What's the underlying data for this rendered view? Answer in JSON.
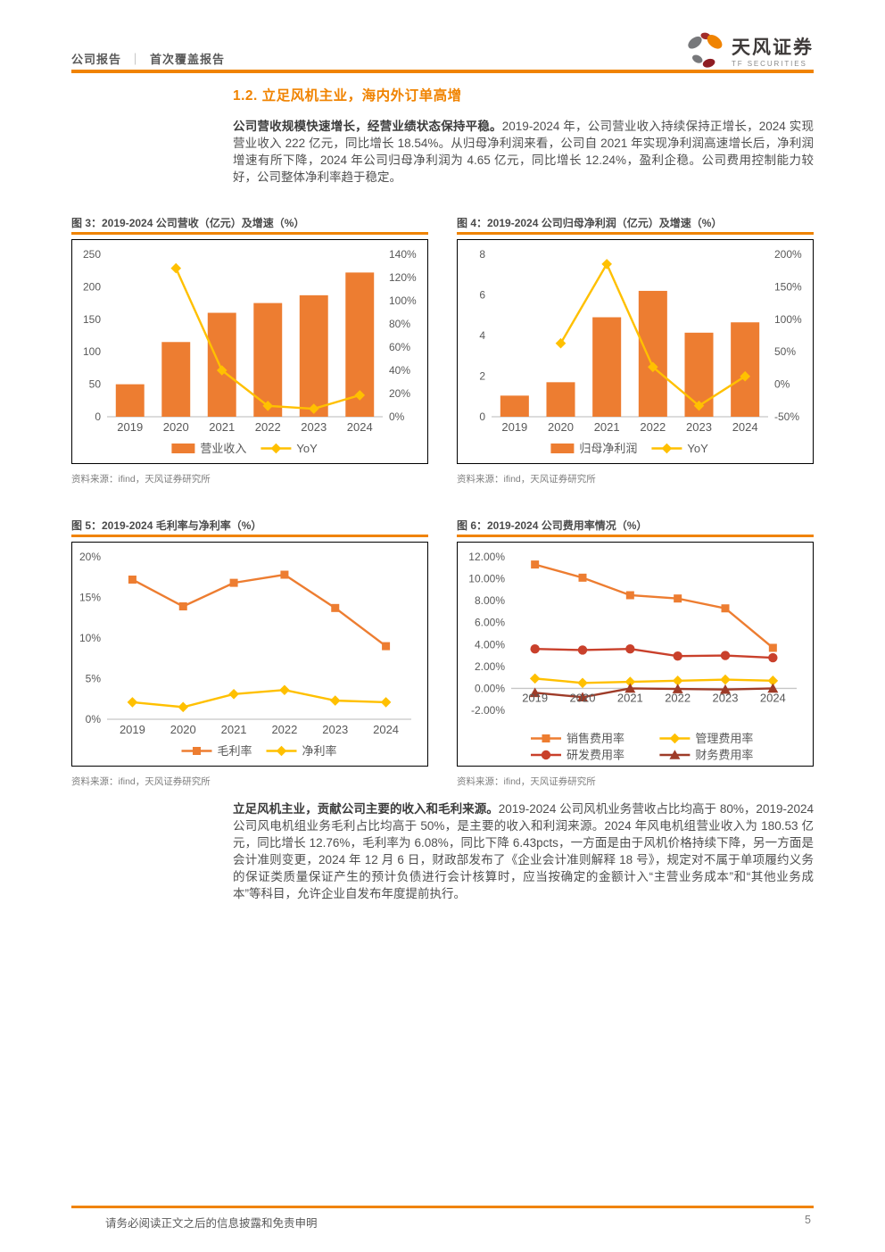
{
  "header": {
    "left_label_1": "公司报告",
    "separator": "｜",
    "left_label_2": "首次覆盖报告",
    "brand_cn": "天风证券",
    "brand_en": "TF SECURITIES"
  },
  "section": {
    "heading": "1.2. 立足风机主业，海内外订单高增"
  },
  "para1": {
    "bold": "公司营收规模快速增长，经营业绩状态保持平稳。",
    "rest": "2019-2024 年，公司营业收入持续保持正增长，2024 实现营业收入 222 亿元，同比增长 18.54%。从归母净利润来看，公司自 2021 年实现净利润高速增长后，净利润增速有所下降，2024 年公司归母净利润为 4.65 亿元，同比增长 12.24%，盈利企稳。公司费用控制能力较好，公司整体净利率趋于稳定。"
  },
  "para2": {
    "bold": "立足风机主业，贡献公司主要的收入和毛利来源。",
    "rest": "2019-2024 公司风机业务营收占比均高于 80%，2019-2024 公司风电机组业务毛利占比均高于 50%，是主要的收入和利润来源。2024 年风电机组营业收入为 180.53 亿元，同比增长 12.76%，毛利率为 6.08%，同比下降 6.43pcts，一方面是由于风机价格持续下降，另一方面是会计准则变更，2024 年 12 月 6 日，财政部发布了《企业会计准则解释 18 号》，规定对不属于单项履约义务的保证类质量保证产生的预计负债进行会计核算时，应当按确定的金额计入“主营业务成本”和“其他业务成本”等科目，允许企业自发布年度提前执行。"
  },
  "footer": {
    "disclaimer": "请务必阅读正文之后的信息披露和免责申明",
    "page_number": "5"
  },
  "colors": {
    "accent": "#F08300",
    "bar_orange": "#ED7D31",
    "gold": "#FFC000",
    "red": "#C9402B",
    "maroon": "#9E3B28",
    "axis_text": "#595959"
  },
  "chart_data": [
    {
      "id": "fig3",
      "type": "bar",
      "caption": "图 3：2019-2024 公司营收（亿元）及增速（%）",
      "source": "资料来源：ifind，天风证券研究所",
      "categories": [
        "2019",
        "2020",
        "2021",
        "2022",
        "2023",
        "2024"
      ],
      "axis_left": {
        "min": 0,
        "max": 250,
        "ticks": [
          {
            "v": 0,
            "label": "0"
          },
          {
            "v": 50,
            "label": "50"
          },
          {
            "v": 100,
            "label": "100"
          },
          {
            "v": 150,
            "label": "150"
          },
          {
            "v": 200,
            "label": "200"
          },
          {
            "v": 250,
            "label": "250"
          }
        ]
      },
      "axis_right": {
        "min": 0,
        "max": 140,
        "ticks": [
          {
            "v": 0,
            "label": "0%"
          },
          {
            "v": 20,
            "label": "20%"
          },
          {
            "v": 40,
            "label": "40%"
          },
          {
            "v": 60,
            "label": "60%"
          },
          {
            "v": 80,
            "label": "80%"
          },
          {
            "v": 100,
            "label": "100%"
          },
          {
            "v": 120,
            "label": "120%"
          },
          {
            "v": 140,
            "label": "140%"
          }
        ]
      },
      "series": [
        {
          "name": "营业收入",
          "type": "bar",
          "axis": "left",
          "color": "#ED7D31",
          "values": [
            50,
            115,
            160,
            175,
            187,
            222
          ]
        },
        {
          "name": "YoY",
          "type": "line",
          "axis": "right",
          "color": "#FFC000",
          "marker": "diamond",
          "values": [
            null,
            128,
            40,
            9.4,
            6.9,
            18.54
          ]
        }
      ],
      "legend": "row"
    },
    {
      "id": "fig4",
      "type": "bar",
      "caption": "图 4：2019-2024 公司归母净利润（亿元）及增速（%）",
      "source": "资料来源：ifind，天风证券研究所",
      "categories": [
        "2019",
        "2020",
        "2021",
        "2022",
        "2023",
        "2024"
      ],
      "axis_left": {
        "min": 0,
        "max": 8,
        "ticks": [
          {
            "v": 0,
            "label": "0"
          },
          {
            "v": 2,
            "label": "2"
          },
          {
            "v": 4,
            "label": "4"
          },
          {
            "v": 6,
            "label": "6"
          },
          {
            "v": 8,
            "label": "8"
          }
        ]
      },
      "axis_right": {
        "min": -50,
        "max": 200,
        "ticks": [
          {
            "v": -50,
            "label": "-50%"
          },
          {
            "v": 0,
            "label": "0%"
          },
          {
            "v": 50,
            "label": "50%"
          },
          {
            "v": 100,
            "label": "100%"
          },
          {
            "v": 150,
            "label": "150%"
          },
          {
            "v": 200,
            "label": "200%"
          }
        ]
      },
      "series": [
        {
          "name": "归母净利润",
          "type": "bar",
          "axis": "left",
          "color": "#ED7D31",
          "values": [
            1.04,
            1.7,
            4.9,
            6.2,
            4.14,
            4.65
          ]
        },
        {
          "name": "YoY",
          "type": "line",
          "axis": "right",
          "color": "#FFC000",
          "marker": "diamond",
          "values": [
            null,
            63,
            185,
            26.5,
            -33,
            12.24
          ]
        }
      ],
      "legend": "row"
    },
    {
      "id": "fig5",
      "type": "line",
      "caption": "图 5：2019-2024 毛利率与净利率（%）",
      "source": "资料来源：ifind，天风证券研究所",
      "categories": [
        "2019",
        "2020",
        "2021",
        "2022",
        "2023",
        "2024"
      ],
      "axis_left": {
        "min": 0,
        "max": 20,
        "ticks": [
          {
            "v": 0,
            "label": "0%"
          },
          {
            "v": 5,
            "label": "5%"
          },
          {
            "v": 10,
            "label": "10%"
          },
          {
            "v": 15,
            "label": "15%"
          },
          {
            "v": 20,
            "label": "20%"
          }
        ]
      },
      "series": [
        {
          "name": "毛利率",
          "type": "line",
          "axis": "left",
          "color": "#ED7D31",
          "marker": "square",
          "values": [
            17.2,
            13.9,
            16.8,
            17.8,
            13.7,
            9.0
          ]
        },
        {
          "name": "净利率",
          "type": "line",
          "axis": "left",
          "color": "#FFC000",
          "marker": "diamond",
          "values": [
            2.1,
            1.5,
            3.1,
            3.6,
            2.3,
            2.1
          ]
        }
      ],
      "legend": "row"
    },
    {
      "id": "fig6",
      "type": "line",
      "caption": "图 6：2019-2024 公司费用率情况（%）",
      "source": "资料来源：ifind，天风证券研究所",
      "categories": [
        "2019",
        "2020",
        "2021",
        "2022",
        "2023",
        "2024"
      ],
      "axis_left": {
        "min": -2,
        "max": 12,
        "ticks": [
          {
            "v": -2,
            "label": "-2.00%"
          },
          {
            "v": 0,
            "label": "0.00%"
          },
          {
            "v": 2,
            "label": "2.00%"
          },
          {
            "v": 4,
            "label": "4.00%"
          },
          {
            "v": 6,
            "label": "6.00%"
          },
          {
            "v": 8,
            "label": "8.00%"
          },
          {
            "v": 10,
            "label": "10.00%"
          },
          {
            "v": 12,
            "label": "12.00%"
          }
        ]
      },
      "series": [
        {
          "name": "销售费用率",
          "type": "line",
          "axis": "left",
          "color": "#ED7D31",
          "marker": "square",
          "values": [
            11.3,
            10.1,
            8.5,
            8.2,
            7.3,
            3.7
          ]
        },
        {
          "name": "管理费用率",
          "type": "line",
          "axis": "left",
          "color": "#FFC000",
          "marker": "diamond",
          "values": [
            0.9,
            0.5,
            0.6,
            0.7,
            0.8,
            0.7
          ]
        },
        {
          "name": "研发费用率",
          "type": "line",
          "axis": "left",
          "color": "#C9402B",
          "marker": "circle",
          "values": [
            3.6,
            3.5,
            3.6,
            2.95,
            3.0,
            2.8
          ]
        },
        {
          "name": "财务费用率",
          "type": "line",
          "axis": "left",
          "color": "#9E3B28",
          "marker": "triangle",
          "values": [
            -0.4,
            -0.8,
            0.0,
            -0.05,
            -0.1,
            0.0
          ]
        }
      ],
      "legend": "grid",
      "x_label_at_zero": true
    }
  ]
}
